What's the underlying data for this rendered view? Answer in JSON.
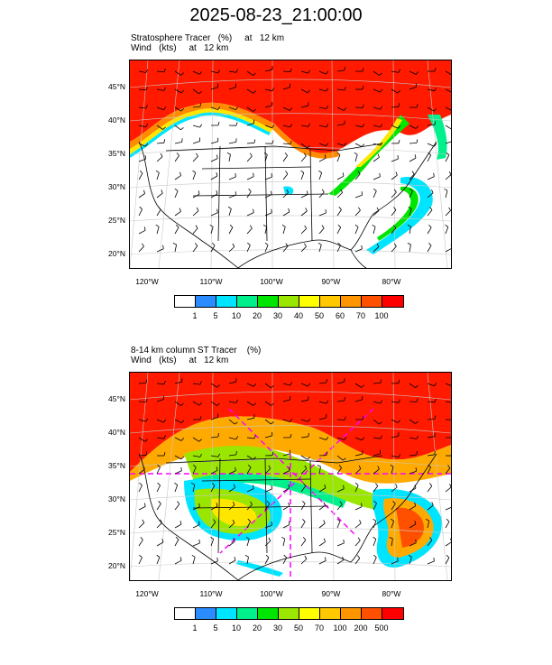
{
  "main_title": "2025-08-23_21:00:00",
  "panels": [
    {
      "title_line1": "Stratosphere Tracer   (%)     at   12 km",
      "title_line2": "Wind   (kts)     at   12 km",
      "lat_labels": [
        "45°N",
        "40°N",
        "35°N",
        "30°N",
        "25°N",
        "20°N"
      ],
      "lon_labels": [
        "120°W",
        "110°W",
        "100°W",
        "90°W",
        "80°W"
      ],
      "colorbar_labels": [
        "1",
        "5",
        "10",
        "20",
        "30",
        "40",
        "50",
        "60",
        "70",
        "100"
      ],
      "colorbar_colors": [
        "#ffffff",
        "#2a8cff",
        "#00e5ff",
        "#00f08c",
        "#00e600",
        "#9be600",
        "#ffff00",
        "#ffc800",
        "#ff9600",
        "#ff5000",
        "#ff0000"
      ]
    },
    {
      "title_line1": "8-14 km column ST Tracer    (%)",
      "title_line2": "Wind   (kts)     at   12 km",
      "lat_labels": [
        "45°N",
        "40°N",
        "35°N",
        "30°N",
        "25°N",
        "20°N"
      ],
      "lon_labels": [
        "120°W",
        "110°W",
        "100°W",
        "90°W",
        "80°W"
      ],
      "colorbar_labels": [
        "1",
        "5",
        "10",
        "20",
        "30",
        "50",
        "70",
        "100",
        "200",
        "500"
      ],
      "colorbar_colors": [
        "#ffffff",
        "#2a8cff",
        "#00e5ff",
        "#00f08c",
        "#00e600",
        "#9be600",
        "#ffff00",
        "#ffc800",
        "#ff9600",
        "#ff5000",
        "#ff0000"
      ]
    }
  ]
}
